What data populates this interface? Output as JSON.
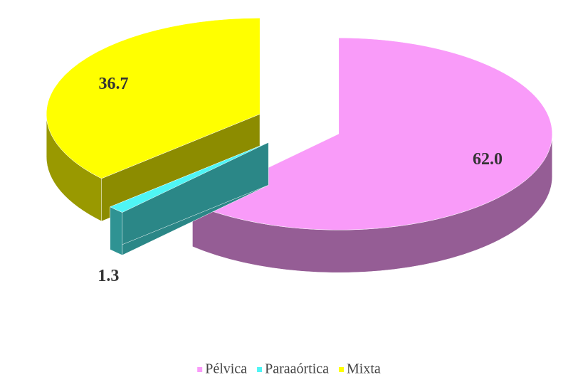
{
  "chart_data": {
    "type": "pie3d",
    "categories": [
      "Pélvica",
      "Paraaórtica",
      "Mixta"
    ],
    "values": [
      62.0,
      1.3,
      36.7
    ],
    "value_labels": [
      "62.0",
      "1.3",
      "36.7"
    ],
    "colors": [
      "#f99bf9",
      "#4ff5f5",
      "#ffff00"
    ]
  }
}
